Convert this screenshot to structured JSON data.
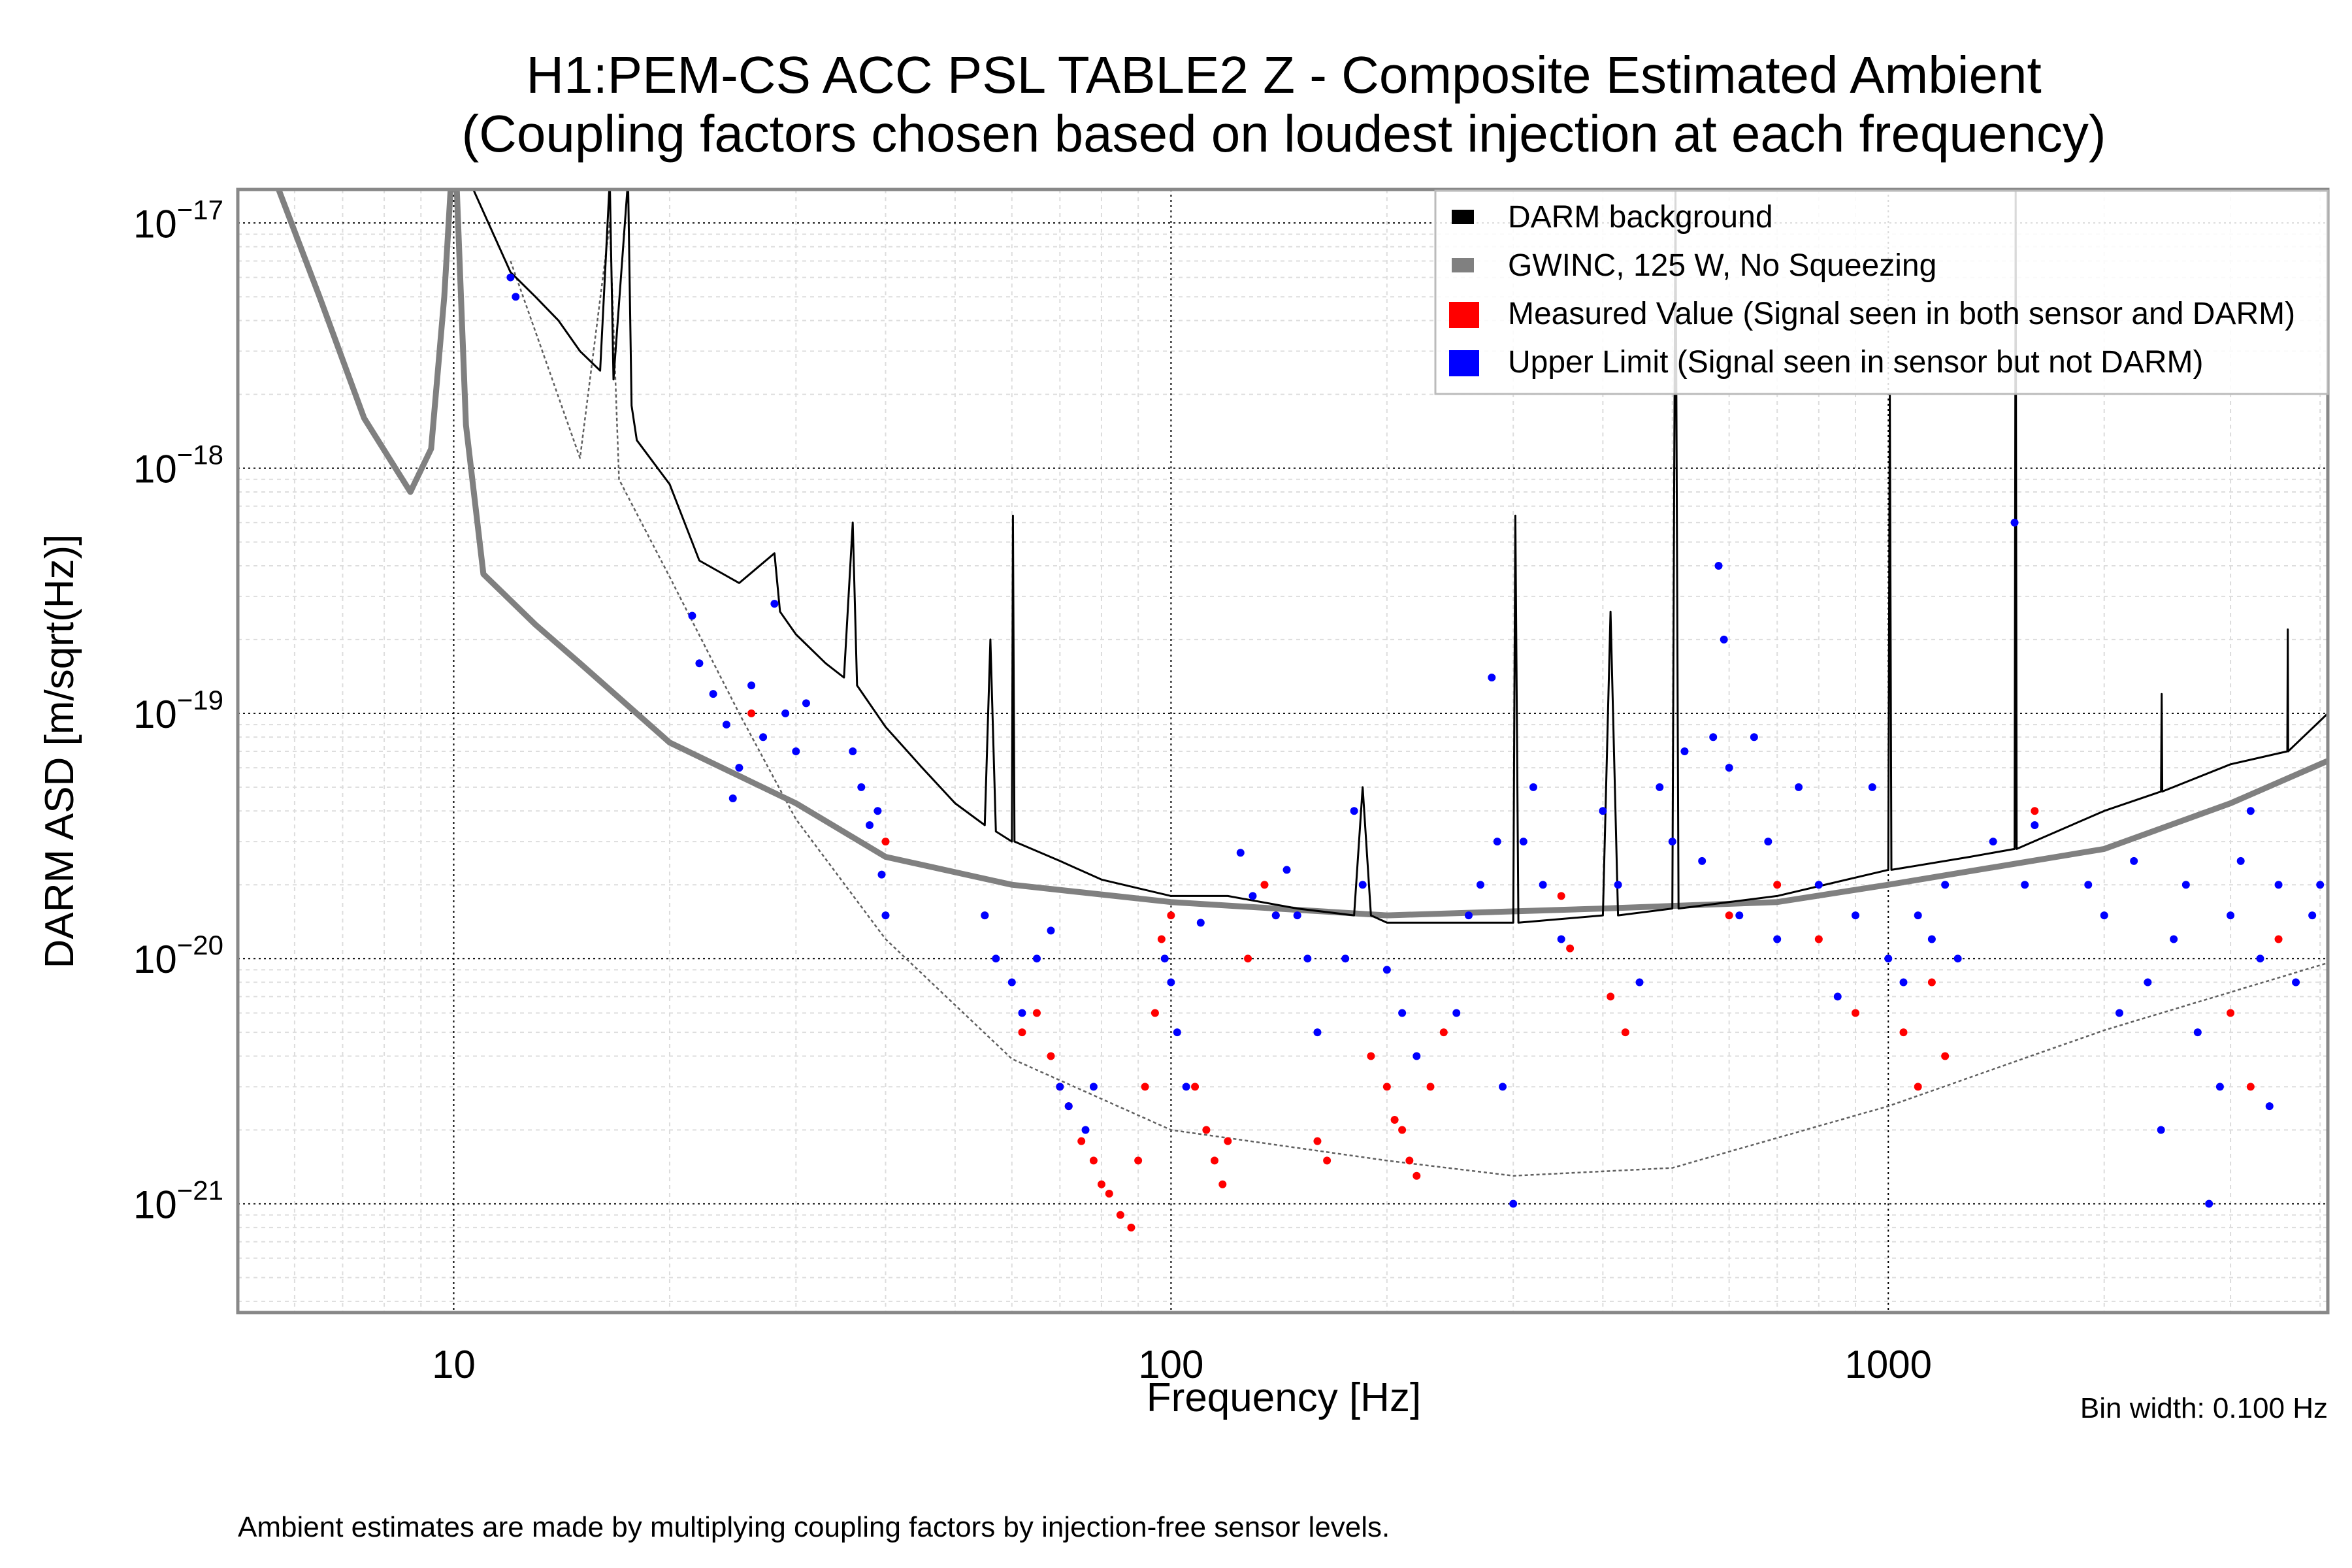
{
  "chart_data": {
    "type": "line",
    "title": "H1:PEM-CS ACC PSL TABLE2 Z - Composite Estimated Ambient",
    "subtitle": "(Coupling factors chosen based on loudest injection at each frequency)",
    "xlabel": "Frequency [Hz]",
    "ylabel": "DARM ASD [m/sqrt(Hz)]",
    "xscale": "log",
    "yscale": "log",
    "xlim": [
      5,
      4100
    ],
    "ylim": [
      3.6e-22,
      1.37e-17
    ],
    "xticks": [
      {
        "value": 10,
        "label": "10"
      },
      {
        "value": 100,
        "label": "100"
      },
      {
        "value": 1000,
        "label": "1000"
      }
    ],
    "yticks": [
      {
        "value": 1e-17,
        "mant": "10",
        "exp": "−17"
      },
      {
        "value": 1e-18,
        "mant": "10",
        "exp": "−18"
      },
      {
        "value": 1e-19,
        "mant": "10",
        "exp": "−19"
      },
      {
        "value": 1e-20,
        "mant": "10",
        "exp": "−20"
      },
      {
        "value": 1e-21,
        "mant": "10",
        "exp": "−21"
      }
    ],
    "grid": true,
    "legend_position": "top-right",
    "annotation_bin_width": "Bin width: 0.100 Hz",
    "footnote": "Ambient estimates are made by multiplying coupling factors by injection-free sensor levels.",
    "series": [
      {
        "name": "DARM background",
        "kind": "line",
        "color": "#000000",
        "points": [
          [
            9.6,
            1.5e-17
          ],
          [
            10,
            1.5e-17
          ],
          [
            10.5,
            1.5e-17
          ],
          [
            12,
            6.3e-18
          ],
          [
            13,
            5e-18
          ],
          [
            14,
            4e-18
          ],
          [
            15,
            3e-18
          ],
          [
            16,
            2.5e-18
          ],
          [
            16.5,
            1.5e-17
          ],
          [
            16.7,
            2.3e-18
          ],
          [
            17.5,
            1.5e-17
          ],
          [
            17.7,
            1.8e-18
          ],
          [
            18,
            1.3e-18
          ],
          [
            20,
            8.6e-19
          ],
          [
            22,
            4.2e-19
          ],
          [
            25,
            3.4e-19
          ],
          [
            28,
            4.5e-19
          ],
          [
            28.5,
            2.6e-19
          ],
          [
            30,
            2.1e-19
          ],
          [
            33,
            1.6e-19
          ],
          [
            35,
            1.4e-19
          ],
          [
            36,
            6e-19
          ],
          [
            36.5,
            1.3e-19
          ],
          [
            40,
            8.8e-20
          ],
          [
            45,
            6e-20
          ],
          [
            50,
            4.3e-20
          ],
          [
            55,
            3.5e-20
          ],
          [
            56,
            2e-19
          ],
          [
            57,
            3.3e-20
          ],
          [
            60,
            3e-20
          ],
          [
            60.2,
            6.4e-19
          ],
          [
            60.5,
            3e-20
          ],
          [
            70,
            2.5e-20
          ],
          [
            80,
            2.1e-20
          ],
          [
            100,
            1.8e-20
          ],
          [
            120,
            1.8e-20
          ],
          [
            150,
            1.6e-20
          ],
          [
            180,
            1.5e-20
          ],
          [
            185,
            5e-20
          ],
          [
            190,
            1.5e-20
          ],
          [
            200,
            1.4e-20
          ],
          [
            300,
            1.4e-20
          ],
          [
            302,
            6.4e-19
          ],
          [
            305,
            1.4e-20
          ],
          [
            400,
            1.5e-20
          ],
          [
            410,
            2.6e-19
          ],
          [
            420,
            1.5e-20
          ],
          [
            500,
            1.6e-20
          ],
          [
            505,
            1.4e-17
          ],
          [
            510,
            1.6e-20
          ],
          [
            700,
            1.8e-20
          ],
          [
            1000,
            2.3e-20
          ],
          [
            1005,
            2e-18
          ],
          [
            1010,
            2.3e-20
          ],
          [
            1300,
            2.6e-20
          ],
          [
            1500,
            2.8e-20
          ],
          [
            1505,
            1.4e-17
          ],
          [
            1510,
            2.8e-20
          ],
          [
            2000,
            4e-20
          ],
          [
            2400,
            4.8e-20
          ],
          [
            2405,
            1.2e-19
          ],
          [
            2410,
            4.8e-20
          ],
          [
            3000,
            6.2e-20
          ],
          [
            3600,
            7e-20
          ],
          [
            3605,
            2.2e-19
          ],
          [
            3610,
            7e-20
          ],
          [
            4100,
            1e-19
          ]
        ]
      },
      {
        "name": "GWINC, 125 W, No Squeezing",
        "kind": "line",
        "color": "#808080",
        "points": [
          [
            5.7,
            1.37e-17
          ],
          [
            6.5,
            5e-18
          ],
          [
            7.5,
            1.6e-18
          ],
          [
            8.7,
            8e-19
          ],
          [
            9.3,
            1.2e-18
          ],
          [
            9.7,
            5e-18
          ],
          [
            9.9,
            1.37e-17
          ],
          [
            10.1,
            1.37e-17
          ],
          [
            10.4,
            1.5e-18
          ],
          [
            11,
            3.7e-19
          ],
          [
            13,
            2.3e-19
          ],
          [
            15,
            1.6e-19
          ],
          [
            20,
            7.6e-20
          ],
          [
            30,
            4.3e-20
          ],
          [
            40,
            2.6e-20
          ],
          [
            60,
            2e-20
          ],
          [
            100,
            1.7e-20
          ],
          [
            200,
            1.5e-20
          ],
          [
            400,
            1.6e-20
          ],
          [
            700,
            1.7e-20
          ],
          [
            1000,
            2e-20
          ],
          [
            2000,
            2.8e-20
          ],
          [
            3000,
            4.3e-20
          ],
          [
            4100,
            6.4e-20
          ]
        ]
      },
      {
        "kind": "dashed-line",
        "color": "#606060",
        "points": [
          [
            12,
            7e-18
          ],
          [
            15,
            1.1e-18
          ],
          [
            16.5,
            1e-17
          ],
          [
            17,
            9e-19
          ],
          [
            20,
            3.6e-19
          ],
          [
            25,
            1e-19
          ],
          [
            30,
            3.7e-20
          ],
          [
            40,
            1.2e-20
          ],
          [
            60,
            3.9e-21
          ],
          [
            100,
            2e-21
          ],
          [
            200,
            1.5e-21
          ],
          [
            300,
            1.3e-21
          ],
          [
            500,
            1.4e-21
          ],
          [
            1000,
            2.5e-21
          ],
          [
            2000,
            5.1e-21
          ],
          [
            4100,
            9.6e-21
          ]
        ]
      },
      {
        "name": "Measured Value (Signal seen in both sensor and DARM)",
        "kind": "scatter",
        "color": "#ff0000",
        "points": [
          [
            26,
            1e-19
          ],
          [
            40,
            3e-20
          ],
          [
            55,
            1.5e-20
          ],
          [
            62,
            5e-21
          ],
          [
            65,
            6e-21
          ],
          [
            68,
            4e-21
          ],
          [
            70,
            3e-21
          ],
          [
            72,
            2.5e-21
          ],
          [
            75,
            1.8e-21
          ],
          [
            78,
            1.5e-21
          ],
          [
            80,
            1.2e-21
          ],
          [
            82,
            1.1e-21
          ],
          [
            85,
            9e-22
          ],
          [
            88,
            8e-22
          ],
          [
            90,
            1.5e-21
          ],
          [
            92,
            3e-21
          ],
          [
            95,
            6e-21
          ],
          [
            97,
            1.2e-20
          ],
          [
            100,
            1.5e-20
          ],
          [
            108,
            3e-21
          ],
          [
            112,
            2e-21
          ],
          [
            115,
            1.5e-21
          ],
          [
            118,
            1.2e-21
          ],
          [
            120,
            1.8e-21
          ],
          [
            128,
            1e-20
          ],
          [
            135,
            2e-20
          ],
          [
            140,
            1.5e-20
          ],
          [
            160,
            1.8e-21
          ],
          [
            165,
            1.5e-21
          ],
          [
            190,
            4e-21
          ],
          [
            200,
            3e-21
          ],
          [
            205,
            2.2e-21
          ],
          [
            210,
            2e-21
          ],
          [
            215,
            1.5e-21
          ],
          [
            220,
            1.3e-21
          ],
          [
            230,
            3e-21
          ],
          [
            240,
            5e-21
          ],
          [
            350,
            1.8e-20
          ],
          [
            360,
            1.1e-20
          ],
          [
            410,
            7e-21
          ],
          [
            430,
            5e-21
          ],
          [
            600,
            1.5e-20
          ],
          [
            700,
            2e-20
          ],
          [
            800,
            1.2e-20
          ],
          [
            900,
            6e-21
          ],
          [
            1050,
            5e-21
          ],
          [
            1100,
            3e-21
          ],
          [
            1150,
            8e-21
          ],
          [
            1200,
            4e-21
          ],
          [
            1600,
            4e-20
          ],
          [
            3000,
            6e-21
          ],
          [
            3200,
            3e-21
          ],
          [
            3500,
            1.2e-20
          ]
        ]
      },
      {
        "name": "Upper Limit (Signal seen in sensor but not DARM)",
        "kind": "scatter",
        "color": "#0000ff",
        "points": [
          [
            12,
            6e-18
          ],
          [
            12.2,
            5e-18
          ],
          [
            21.5,
            2.5e-19
          ],
          [
            22,
            1.6e-19
          ],
          [
            23,
            1.2e-19
          ],
          [
            24,
            9e-20
          ],
          [
            24.5,
            4.5e-20
          ],
          [
            25,
            6e-20
          ],
          [
            26,
            1.3e-19
          ],
          [
            27,
            8e-20
          ],
          [
            28,
            2.8e-19
          ],
          [
            29,
            1e-19
          ],
          [
            30,
            7e-20
          ],
          [
            31,
            1.1e-19
          ],
          [
            36,
            7e-20
          ],
          [
            37,
            5e-20
          ],
          [
            38,
            3.5e-20
          ],
          [
            39,
            4e-20
          ],
          [
            39.5,
            2.2e-20
          ],
          [
            40,
            1.5e-20
          ],
          [
            55,
            1.5e-20
          ],
          [
            57,
            1e-20
          ],
          [
            60,
            8e-21
          ],
          [
            62,
            6e-21
          ],
          [
            65,
            1e-20
          ],
          [
            68,
            1.3e-20
          ],
          [
            70,
            3e-21
          ],
          [
            72,
            2.5e-21
          ],
          [
            76,
            2e-21
          ],
          [
            78,
            3e-21
          ],
          [
            98,
            1e-20
          ],
          [
            100,
            8e-21
          ],
          [
            102,
            5e-21
          ],
          [
            105,
            3e-21
          ],
          [
            110,
            1.4e-20
          ],
          [
            125,
            2.7e-20
          ],
          [
            130,
            1.8e-20
          ],
          [
            140,
            1.5e-20
          ],
          [
            145,
            2.3e-20
          ],
          [
            150,
            1.5e-20
          ],
          [
            155,
            1e-20
          ],
          [
            160,
            5e-21
          ],
          [
            175,
            1e-20
          ],
          [
            180,
            4e-20
          ],
          [
            185,
            2e-20
          ],
          [
            200,
            9e-21
          ],
          [
            210,
            6e-21
          ],
          [
            220,
            4e-21
          ],
          [
            250,
            6e-21
          ],
          [
            260,
            1.5e-20
          ],
          [
            270,
            2e-20
          ],
          [
            280,
            1.4e-19
          ],
          [
            285,
            3e-20
          ],
          [
            290,
            3e-21
          ],
          [
            300,
            1e-21
          ],
          [
            310,
            3e-20
          ],
          [
            320,
            5e-20
          ],
          [
            330,
            2e-20
          ],
          [
            350,
            1.2e-20
          ],
          [
            400,
            4e-20
          ],
          [
            420,
            2e-20
          ],
          [
            450,
            8e-21
          ],
          [
            480,
            5e-20
          ],
          [
            500,
            3e-20
          ],
          [
            520,
            7e-20
          ],
          [
            550,
            2.5e-20
          ],
          [
            570,
            8e-20
          ],
          [
            580,
            4e-19
          ],
          [
            590,
            2e-19
          ],
          [
            600,
            6e-20
          ],
          [
            620,
            1.5e-20
          ],
          [
            650,
            8e-20
          ],
          [
            680,
            3e-20
          ],
          [
            700,
            1.2e-20
          ],
          [
            750,
            5e-20
          ],
          [
            800,
            2e-20
          ],
          [
            850,
            7e-21
          ],
          [
            900,
            1.5e-20
          ],
          [
            950,
            5e-20
          ],
          [
            1000,
            1e-20
          ],
          [
            1050,
            8e-21
          ],
          [
            1100,
            1.5e-20
          ],
          [
            1150,
            1.2e-20
          ],
          [
            1200,
            2e-20
          ],
          [
            1250,
            1e-20
          ],
          [
            1400,
            3e-20
          ],
          [
            1500,
            6e-19
          ],
          [
            1550,
            2e-20
          ],
          [
            1600,
            3.5e-20
          ],
          [
            1900,
            2e-20
          ],
          [
            2000,
            1.5e-20
          ],
          [
            2100,
            6e-21
          ],
          [
            2200,
            2.5e-20
          ],
          [
            2300,
            8e-21
          ],
          [
            2400,
            2e-21
          ],
          [
            2500,
            1.2e-20
          ],
          [
            2600,
            2e-20
          ],
          [
            2700,
            5e-21
          ],
          [
            2800,
            1e-21
          ],
          [
            2900,
            3e-21
          ],
          [
            3000,
            1.5e-20
          ],
          [
            3100,
            2.5e-20
          ],
          [
            3200,
            4e-20
          ],
          [
            3300,
            1e-20
          ],
          [
            3400,
            2.5e-21
          ],
          [
            3500,
            2e-20
          ],
          [
            3700,
            8e-21
          ],
          [
            3900,
            1.5e-20
          ],
          [
            4000,
            2e-20
          ]
        ]
      }
    ]
  }
}
